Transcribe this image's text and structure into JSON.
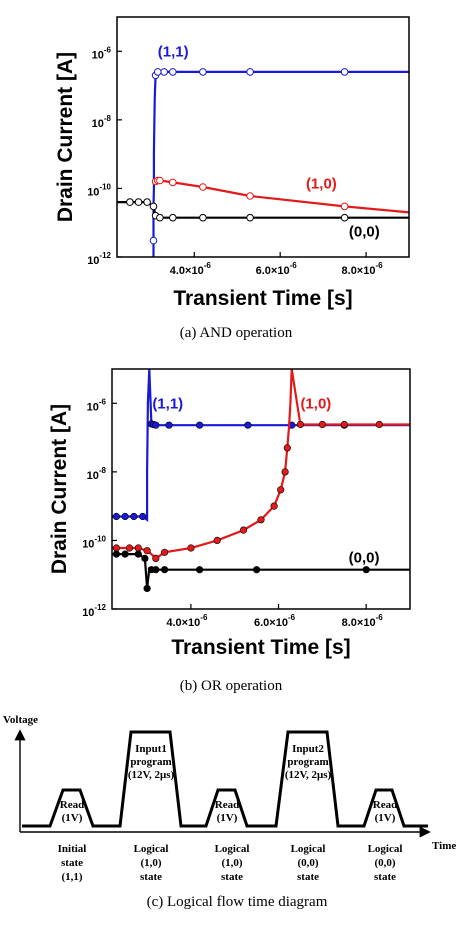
{
  "chart_data": [
    {
      "type": "line",
      "id": "a",
      "caption": "(a) AND operation",
      "ylabel": "Drain Current [A]",
      "xlabel": "Transient Time [s]",
      "yscale": "log",
      "ylim": [
        1e-12,
        1e-05
      ],
      "xlim": [
        2.2e-06,
        9e-06
      ],
      "yticks": [
        {
          "v": 1e-06,
          "base": "10",
          "exp": "-6"
        },
        {
          "v": 1e-08,
          "base": "10",
          "exp": "-8"
        },
        {
          "v": 1e-10,
          "base": "10",
          "exp": "-10"
        },
        {
          "v": 1e-12,
          "base": "10",
          "exp": "-12"
        }
      ],
      "xticks": [
        {
          "v": 4e-06,
          "m": "4.0×10",
          "exp": "-6"
        },
        {
          "v": 6e-06,
          "m": "6.0×10",
          "exp": "-6"
        },
        {
          "v": 8e-06,
          "m": "8.0×10",
          "exp": "-6"
        }
      ],
      "series": [
        {
          "label": "(1,1)",
          "color": "#1a1ad6",
          "filled": false,
          "x": [
            3.05e-06,
            3.05e-06,
            3.05e-06,
            3.06e-06,
            3.06e-06,
            3.07e-06,
            3.08e-06,
            3.09e-06,
            3.1e-06,
            3.12e-06,
            3.15e-06,
            3.2e-06,
            3.3e-06,
            3.5e-06,
            4.2e-06,
            5.3e-06,
            7.5e-06,
            9e-06
          ],
          "y": [
            1e-12,
            3e-12,
            3e-11,
            1e-10,
            1e-09,
            1e-08,
            5e-08,
            1e-07,
            2e-07,
            2.4e-07,
            2.5e-07,
            2.5e-07,
            2.5e-07,
            2.5e-07,
            2.5e-07,
            2.5e-07,
            2.5e-07,
            2.5e-07
          ],
          "markers": [
            3.05e-06,
            3.1e-06,
            3.15e-06,
            3.3e-06,
            3.5e-06,
            4.2e-06,
            5.3e-06,
            7.5e-06
          ]
        },
        {
          "label": "(1,0)",
          "color": "#e31a1a",
          "filled": false,
          "x": [
            3.1e-06,
            3.15e-06,
            3.2e-06,
            3.5e-06,
            4.2e-06,
            5.3e-06,
            7.5e-06,
            9e-06
          ],
          "y": [
            1.6e-10,
            1.7e-10,
            1.7e-10,
            1.5e-10,
            1.1e-10,
            6e-11,
            3e-11,
            2e-11
          ],
          "markers": [
            3.1e-06,
            3.15e-06,
            3.2e-06,
            3.5e-06,
            4.2e-06,
            5.3e-06,
            7.5e-06
          ]
        },
        {
          "label": "(0,0)",
          "color": "#000000",
          "filled": false,
          "x": [
            2.2e-06,
            2.5e-06,
            2.7e-06,
            2.9e-06,
            3.05e-06,
            3.1e-06,
            3.15e-06,
            3.2e-06,
            3.5e-06,
            4.2e-06,
            5.3e-06,
            7.5e-06,
            9e-06
          ],
          "y": [
            4e-11,
            4e-11,
            4e-11,
            4e-11,
            3e-11,
            1.6e-11,
            1.5e-11,
            1.4e-11,
            1.4e-11,
            1.4e-11,
            1.4e-11,
            1.4e-11,
            1.4e-11
          ],
          "markers": [
            2.5e-06,
            2.7e-06,
            2.9e-06,
            3.05e-06,
            3.1e-06,
            3.2e-06,
            3.5e-06,
            4.2e-06,
            5.3e-06,
            7.5e-06
          ]
        }
      ],
      "annotations": [
        {
          "text": "(1,1)",
          "x": 3.15e-06,
          "y": 7e-07,
          "color": "#1a1ad6"
        },
        {
          "text": "(1,0)",
          "x": 6.6e-06,
          "y": 1e-10,
          "color": "#e31a1a"
        },
        {
          "text": "(0,0)",
          "x": 7.6e-06,
          "y": 4e-12,
          "color": "#000000"
        }
      ]
    },
    {
      "type": "line",
      "id": "b",
      "caption": "(b) OR operation",
      "ylabel": "Drain Current [A]",
      "xlabel": "Transient Time [s]",
      "yscale": "log",
      "ylim": [
        1e-12,
        1e-05
      ],
      "xlim": [
        2.2e-06,
        9e-06
      ],
      "yticks": [
        {
          "v": 1e-06,
          "base": "10",
          "exp": "-6"
        },
        {
          "v": 1e-08,
          "base": "10",
          "exp": "-8"
        },
        {
          "v": 1e-10,
          "base": "10",
          "exp": "-10"
        },
        {
          "v": 1e-12,
          "base": "10",
          "exp": "-12"
        }
      ],
      "xticks": [
        {
          "v": 4e-06,
          "m": "4.0×10",
          "exp": "-6"
        },
        {
          "v": 6e-06,
          "m": "6.0×10",
          "exp": "-6"
        },
        {
          "v": 8e-06,
          "m": "8.0×10",
          "exp": "-6"
        }
      ],
      "series": [
        {
          "label": "(1,1)",
          "color": "#1a1ad6",
          "filled": true,
          "x": [
            2.2e-06,
            2.4e-06,
            2.7e-06,
            2.9e-06,
            3e-06,
            3e-06,
            3.02e-06,
            3.05e-06,
            3.1e-06,
            3.2e-06,
            3.5e-06,
            4.2e-06,
            5.3e-06,
            6.3e-06,
            7.5e-06,
            9e-06
          ],
          "y": [
            5e-10,
            5e-10,
            5e-10,
            5e-10,
            4e-10,
            1e-08,
            1e-06,
            1e-05,
            2.5e-07,
            2.3e-07,
            2.3e-07,
            2.3e-07,
            2.3e-07,
            2.3e-07,
            2.3e-07,
            2.3e-07
          ],
          "markers": [
            2.3e-06,
            2.5e-06,
            2.7e-06,
            2.9e-06,
            3.1e-06,
            3.15e-06,
            3.2e-06,
            3.5e-06,
            4.2e-06,
            5.3e-06,
            6.3e-06,
            7.5e-06
          ]
        },
        {
          "label": "(1,0)",
          "color": "#e31a1a",
          "filled": true,
          "x": [
            2.2e-06,
            2.5e-06,
            2.8e-06,
            3e-06,
            3.1e-06,
            3.2e-06,
            3.4e-06,
            4e-06,
            4.6e-06,
            5.2e-06,
            5.6e-06,
            5.9e-06,
            6.05e-06,
            6.15e-06,
            6.2e-06,
            6.24e-06,
            6.27e-06,
            6.3e-06,
            6.5e-06,
            7e-06,
            7.5e-06,
            8.3e-06,
            9e-06
          ],
          "y": [
            6e-11,
            6e-11,
            6e-11,
            5e-11,
            4e-11,
            3e-11,
            4.5e-11,
            6e-11,
            1e-10,
            2e-10,
            4e-10,
            1e-09,
            3e-09,
            1e-08,
            5e-08,
            2e-07,
            1e-06,
            1e-05,
            2.4e-07,
            2.4e-07,
            2.4e-07,
            2.4e-07,
            2.4e-07
          ],
          "markers": [
            2.3e-06,
            2.6e-06,
            2.8e-06,
            3e-06,
            3.2e-06,
            3.4e-06,
            4e-06,
            4.6e-06,
            5.2e-06,
            5.6e-06,
            5.9e-06,
            6.05e-06,
            6.15e-06,
            6.2e-06,
            6.5e-06,
            7e-06,
            7.5e-06,
            8.3e-06
          ]
        },
        {
          "label": "(0,0)",
          "color": "#000000",
          "filled": true,
          "x": [
            2.2e-06,
            2.5e-06,
            2.8e-06,
            2.95e-06,
            3e-06,
            3.05e-06,
            3.1e-06,
            3.2e-06,
            3.4e-06,
            4.2e-06,
            5.5e-06,
            8e-06,
            9e-06
          ],
          "y": [
            4e-11,
            4e-11,
            4e-11,
            3e-11,
            4e-12,
            1.5e-11,
            1.4e-11,
            1.4e-11,
            1.4e-11,
            1.4e-11,
            1.4e-11,
            1.4e-11,
            1.4e-11
          ],
          "markers": [
            2.3e-06,
            2.5e-06,
            2.8e-06,
            2.95e-06,
            3e-06,
            3.1e-06,
            3.2e-06,
            3.4e-06,
            4.2e-06,
            5.5e-06,
            8e-06
          ]
        }
      ],
      "annotations": [
        {
          "text": "(1,1)",
          "x": 3.12e-06,
          "y": 7e-07,
          "color": "#1a1ad6"
        },
        {
          "text": "(1,0)",
          "x": 6.5e-06,
          "y": 7e-07,
          "color": "#e31a1a"
        },
        {
          "text": "(0,0)",
          "x": 7.6e-06,
          "y": 2.3e-11,
          "color": "#000000"
        }
      ]
    }
  ],
  "diagram": {
    "caption": "(c) Logical flow time diagram",
    "voltage_label": "Voltage",
    "time_label": "Time",
    "pulses": [
      {
        "lines": [
          "Read",
          "(1V)"
        ]
      },
      {
        "lines": [
          "Input1",
          "program",
          "(12V, 2μs)"
        ]
      },
      {
        "lines": [
          "Read",
          "(1V)"
        ]
      },
      {
        "lines": [
          "Input2",
          "program",
          "(12V, 2μs)"
        ]
      },
      {
        "lines": [
          "Read",
          "(1V)"
        ]
      }
    ],
    "states": [
      {
        "lines": [
          "Initial",
          "state",
          "(1,1)"
        ]
      },
      {
        "lines": [
          "Logical",
          "(1,0)",
          "state"
        ]
      },
      {
        "lines": [
          "Logical",
          "(1,0)",
          "state"
        ]
      },
      {
        "lines": [
          "Logical",
          "(0,0)",
          "state"
        ]
      },
      {
        "lines": [
          "Logical",
          "(0,0)",
          "state"
        ]
      }
    ]
  }
}
